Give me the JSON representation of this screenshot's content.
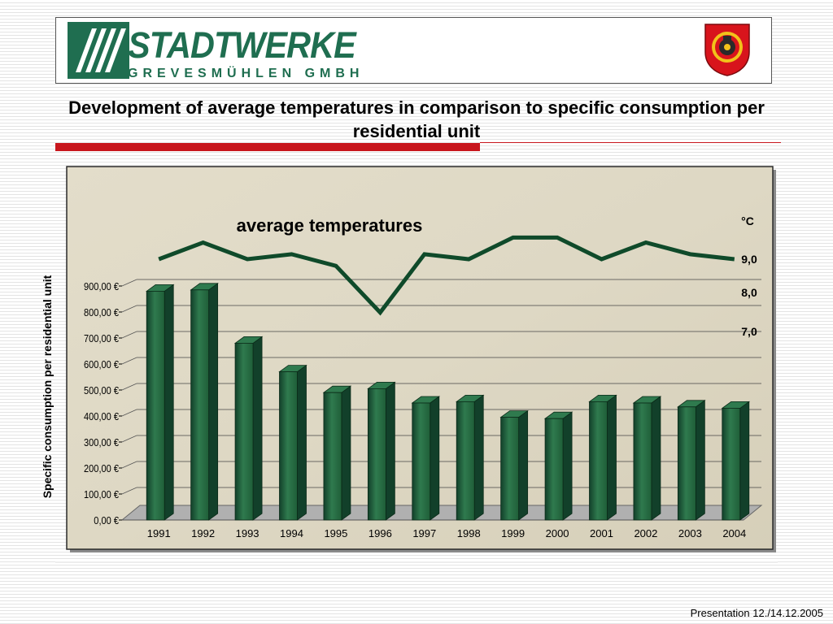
{
  "header": {
    "logo_main": "STADTWERKE",
    "logo_sub": "GREVESMÜHLEN GMBH"
  },
  "title": "Development of average temperatures in comparison to specific consumption per residential unit",
  "footer": "Presentation 12./14.12.2005",
  "colors": {
    "bar": "#1f5e38",
    "bar_dark": "#12402a",
    "bar_light": "#2f7a4e",
    "line": "#0f4a2a",
    "rule": "#c8161d",
    "chart_bg": "#ded8c4"
  },
  "chart_data": [
    {
      "type": "bar",
      "ylabel": "Specific consumption per residential unit",
      "categories": [
        "1991",
        "1992",
        "1993",
        "1994",
        "1995",
        "1996",
        "1997",
        "1998",
        "1999",
        "2000",
        "2001",
        "2002",
        "2003",
        "2004"
      ],
      "values": [
        880,
        885,
        680,
        570,
        490,
        505,
        450,
        455,
        395,
        390,
        455,
        450,
        435,
        430
      ],
      "ylim": [
        0,
        900
      ],
      "yticks": [
        "0,00 €",
        "100,00 €",
        "200,00 €",
        "300,00 €",
        "400,00 €",
        "500,00 €",
        "600,00 €",
        "700,00 €",
        "800,00 €",
        "900,00 €"
      ],
      "grid": true,
      "style": "3d"
    },
    {
      "type": "line",
      "title": "average temperatures",
      "unit": "°C",
      "x": [
        "1991",
        "1992",
        "1993",
        "1994",
        "1995",
        "1996",
        "1997",
        "1998",
        "1999",
        "2000",
        "2001",
        "2002",
        "2003",
        "2004"
      ],
      "values": [
        9.0,
        9.5,
        9.0,
        9.15,
        8.8,
        7.4,
        9.15,
        9.0,
        9.65,
        9.65,
        9.0,
        9.5,
        9.15,
        9.0
      ],
      "ytick_labels": [
        "9,0",
        "8,0",
        "7,0"
      ],
      "yticks": [
        9,
        8,
        7
      ]
    }
  ]
}
